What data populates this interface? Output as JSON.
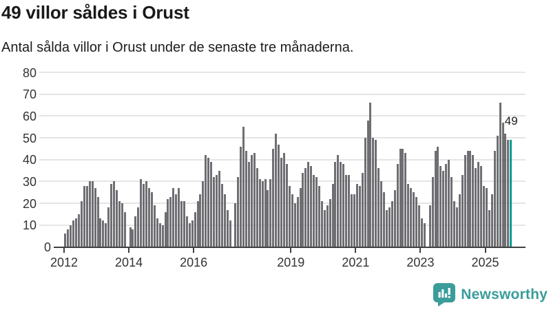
{
  "header": {
    "title": "49 villor såldes i Orust",
    "subtitle": "Antal sålda villor i Orust under de senaste tre månaderna."
  },
  "footer": {
    "brand": "Newsworthy",
    "logo_icon": "newsworthy-speech-bubble-bar-chart-icon"
  },
  "chart_data": {
    "type": "bar",
    "title": "49 villor såldes i Orust",
    "subtitle": "Antal sålda villor i Orust under de senaste tre månaderna.",
    "x_start": "2012-01",
    "x_end": "2025-10",
    "x_frequency": "monthly",
    "xticks": [
      2012,
      2014,
      2016,
      2019,
      2021,
      2023,
      2025
    ],
    "yticks": [
      0,
      10,
      20,
      30,
      40,
      50,
      60,
      70,
      80
    ],
    "ylim": [
      0,
      80
    ],
    "grid": "horizontal",
    "legend": "none",
    "annotation": "49",
    "highlight_last": true,
    "highlight_value": 49,
    "values": [
      6,
      8,
      10,
      12,
      13,
      15,
      21,
      28,
      28,
      30,
      30,
      27,
      23,
      13,
      12,
      11,
      18,
      29,
      30,
      26,
      21,
      20,
      16,
      null,
      9,
      8,
      14,
      18,
      31,
      29,
      30,
      27,
      25,
      19,
      13,
      11,
      10,
      16,
      22,
      23,
      27,
      24,
      27,
      21,
      21,
      14,
      11,
      12,
      16,
      21,
      24,
      30,
      42,
      41,
      39,
      32,
      33,
      35,
      29,
      24,
      17,
      12,
      null,
      20,
      32,
      46,
      55,
      44,
      39,
      42,
      43,
      36,
      31,
      30,
      31,
      26,
      31,
      45,
      52,
      47,
      41,
      43,
      38,
      28,
      24,
      20,
      23,
      27,
      34,
      36,
      39,
      37,
      33,
      32,
      28,
      21,
      17,
      19,
      22,
      29,
      39,
      42,
      39,
      38,
      33,
      33,
      24,
      24,
      29,
      28,
      34,
      50,
      58,
      66,
      50,
      49,
      36,
      30,
      25,
      17,
      18,
      21,
      26,
      38,
      45,
      45,
      43,
      29,
      27,
      25,
      23,
      19,
      13,
      11,
      null,
      19,
      32,
      44,
      46,
      37,
      35,
      38,
      40,
      32,
      21,
      18,
      24,
      33,
      42,
      44,
      44,
      42,
      36,
      39,
      37,
      28,
      27,
      17,
      24,
      44,
      51,
      66,
      57,
      52,
      49,
      49
    ],
    "colors": {
      "bar": "#6e6e73",
      "highlight": "#009a92",
      "grid": "#e5e5e5",
      "axis": "#404040",
      "tick_label": "#333333",
      "annotation_text": "#1d1d1d",
      "brand": "#3a9d9a"
    }
  }
}
